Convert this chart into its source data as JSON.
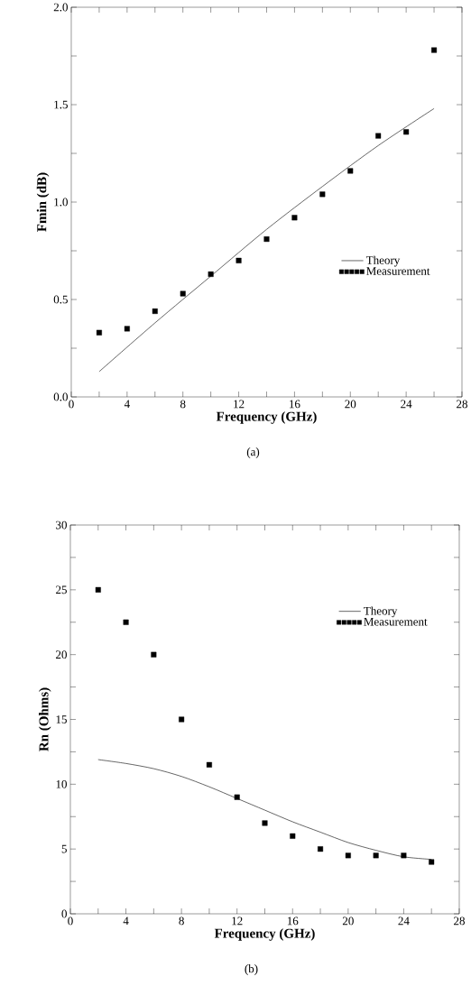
{
  "chart_data": [
    {
      "type": "line",
      "xlabel": "Frequency (GHz)",
      "ylabel": "Fmin (dB)",
      "annotations": [
        "(a)"
      ],
      "xlim": [
        0,
        28
      ],
      "ylim": [
        0,
        2
      ],
      "xticks": [
        0,
        {
          "value": 2,
          "label": null
        },
        4,
        {
          "value": 6,
          "label": null
        },
        8,
        {
          "value": 10,
          "label": null
        },
        12,
        {
          "value": 14,
          "label": null
        },
        16,
        {
          "value": 18,
          "label": null
        },
        20,
        {
          "value": 22,
          "label": null
        },
        24,
        {
          "value": 26,
          "label": null
        },
        28
      ],
      "yticks": [
        {
          "value": 0,
          "label": "0.0"
        },
        {
          "value": 0.25,
          "label": null
        },
        {
          "value": 0.5,
          "label": "0.5"
        },
        {
          "value": 0.75,
          "label": null
        },
        {
          "value": 1,
          "label": "1.0"
        },
        {
          "value": 1.25,
          "label": null
        },
        {
          "value": 1.5,
          "label": "1.5"
        },
        {
          "value": 1.75,
          "label": null
        },
        {
          "value": 2,
          "label": "2.0"
        }
      ],
      "legend": "bottom right",
      "series": [
        {
          "name": "Theory",
          "color": "#000000",
          "marker": "none",
          "x": [
            2,
            6,
            10,
            14,
            18,
            22,
            26
          ],
          "values": [
            0.13,
            0.38,
            0.62,
            0.86,
            1.08,
            1.29,
            1.48
          ]
        },
        {
          "name": "Measurement",
          "type": "scatter",
          "color": "#000000",
          "marker": "square",
          "x": [
            2,
            4,
            6,
            8,
            10,
            12,
            14,
            16,
            18,
            20,
            22,
            24,
            26
          ],
          "values": [
            0.33,
            0.35,
            0.44,
            0.53,
            0.63,
            0.7,
            0.81,
            0.92,
            1.04,
            1.16,
            1.34,
            1.36,
            1.78
          ]
        }
      ]
    },
    {
      "type": "line",
      "xlabel": "Frequency (GHz)",
      "ylabel": "Rn (Ohms)",
      "annotations": [
        "(b)"
      ],
      "xlim": [
        0,
        28
      ],
      "ylim": [
        0,
        30
      ],
      "xticks": [
        0,
        {
          "value": 2,
          "label": null
        },
        4,
        {
          "value": 6,
          "label": null
        },
        8,
        {
          "value": 10,
          "label": null
        },
        12,
        {
          "value": 14,
          "label": null
        },
        16,
        {
          "value": 18,
          "label": null
        },
        20,
        {
          "value": 22,
          "label": null
        },
        24,
        {
          "value": 26,
          "label": null
        },
        28
      ],
      "yticks": [
        0,
        {
          "value": 2.5,
          "label": null
        },
        5,
        {
          "value": 7.5,
          "label": null
        },
        10,
        {
          "value": 12.5,
          "label": null
        },
        15,
        {
          "value": 17.5,
          "label": null
        },
        20,
        {
          "value": 22.5,
          "label": null
        },
        25,
        {
          "value": 27.5,
          "label": null
        },
        30
      ],
      "legend": "top right",
      "series": [
        {
          "name": "Theory",
          "color": "#000000",
          "marker": "none",
          "x": [
            2,
            4,
            6,
            8,
            10,
            12,
            14,
            16,
            18,
            20,
            22,
            24,
            26
          ],
          "values": [
            11.9,
            11.6,
            11.2,
            10.6,
            9.8,
            8.9,
            8.0,
            7.1,
            6.3,
            5.5,
            4.9,
            4.4,
            4.2
          ]
        },
        {
          "name": "Measurement",
          "type": "scatter",
          "color": "#000000",
          "marker": "square",
          "x": [
            2,
            4,
            6,
            8,
            10,
            12,
            14,
            16,
            18,
            20,
            22,
            24,
            26
          ],
          "values": [
            25,
            22.5,
            20,
            15,
            11.5,
            9,
            7,
            6,
            5,
            4.5,
            4.5,
            4.5,
            4
          ]
        }
      ]
    }
  ]
}
